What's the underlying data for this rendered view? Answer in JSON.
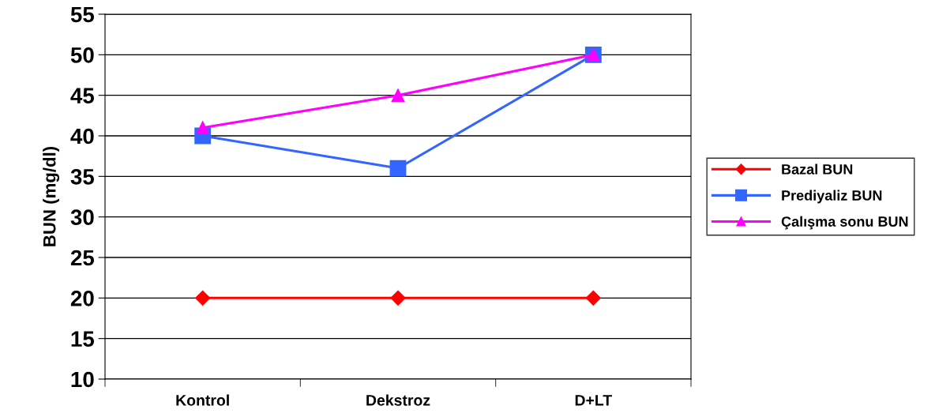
{
  "chart_data": {
    "type": "line",
    "ylabel": "BUN (mg/dl)",
    "categories": [
      "Kontrol",
      "Dekstroz",
      "D+LT"
    ],
    "series": [
      {
        "name": "Bazal BUN",
        "color": "#ff0000",
        "marker": "diamond",
        "values": [
          20,
          20,
          20
        ]
      },
      {
        "name": "Prediyaliz BUN",
        "color": "#3366ff",
        "marker": "square",
        "values": [
          40,
          36,
          50
        ]
      },
      {
        "name": "Çalışma sonu BUN",
        "color": "#ff00ff",
        "marker": "triangle",
        "values": [
          41,
          45,
          50
        ]
      }
    ],
    "ylim": [
      10,
      55
    ],
    "yticks": [
      10,
      15,
      20,
      25,
      30,
      35,
      40,
      45,
      50,
      55
    ],
    "grid": "y",
    "legend": "right",
    "line_style": "solid"
  }
}
